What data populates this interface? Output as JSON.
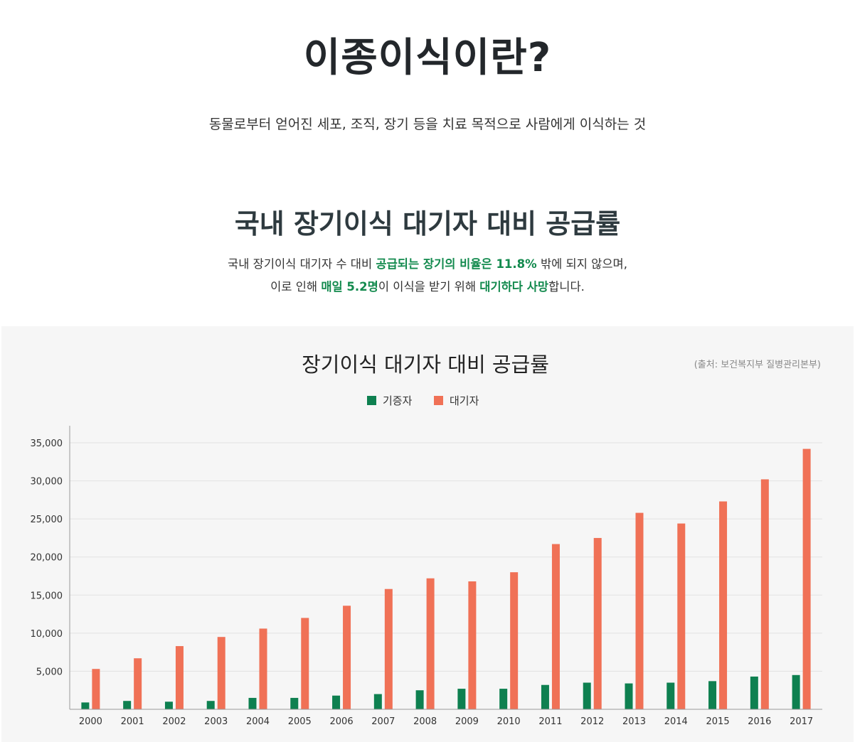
{
  "hero": {
    "title": "이종이식이란?",
    "description": "동물로부터 얻어진 세포, 조직, 장기 등을 치료 목적으로 사람에게 이식하는 것"
  },
  "section": {
    "title": "국내 장기이식 대기자 대비 공급률",
    "line1": {
      "a": "국내 장기이식 대기자 수 대비 ",
      "b": "공급되는 장기의 비율은 11.8%",
      "c": " 밖에 되지 않으며,"
    },
    "line2": {
      "a": "이로 인해 ",
      "b": "매일 5.2명",
      "c": "이 이식을 받기 위해 ",
      "d": "대기하다 사망",
      "e": "합니다."
    }
  },
  "chart_data": {
    "type": "bar",
    "title": "장기이식 대기자 대비 공급률",
    "source": "(출처: 보건복지부 질병관리본부)",
    "legend_position": "top-center",
    "grid": true,
    "xlabel": "",
    "ylabel": "",
    "ylim": [
      0,
      35000
    ],
    "yticks": [
      5000,
      10000,
      15000,
      20000,
      25000,
      30000,
      35000
    ],
    "ytick_labels": [
      "5,000",
      "10,000",
      "15,000",
      "20,000",
      "25,000",
      "30,000",
      "35,000"
    ],
    "categories": [
      "2000",
      "2001",
      "2002",
      "2003",
      "2004",
      "2005",
      "2006",
      "2007",
      "2008",
      "2009",
      "2010",
      "2011",
      "2012",
      "2013",
      "2014",
      "2015",
      "2016",
      "2017"
    ],
    "series": [
      {
        "name": "기증자",
        "color": "#0e8050",
        "values": [
          900,
          1100,
          1000,
          1100,
          1500,
          1500,
          1800,
          2000,
          2500,
          2700,
          2700,
          3200,
          3500,
          3400,
          3500,
          3700,
          4300,
          4500
        ]
      },
      {
        "name": "대기자",
        "color": "#f07156",
        "values": [
          5300,
          6700,
          8300,
          9500,
          10600,
          12000,
          13600,
          15800,
          17200,
          16800,
          18000,
          21700,
          22500,
          25800,
          24400,
          27300,
          30200,
          34200
        ]
      }
    ]
  }
}
